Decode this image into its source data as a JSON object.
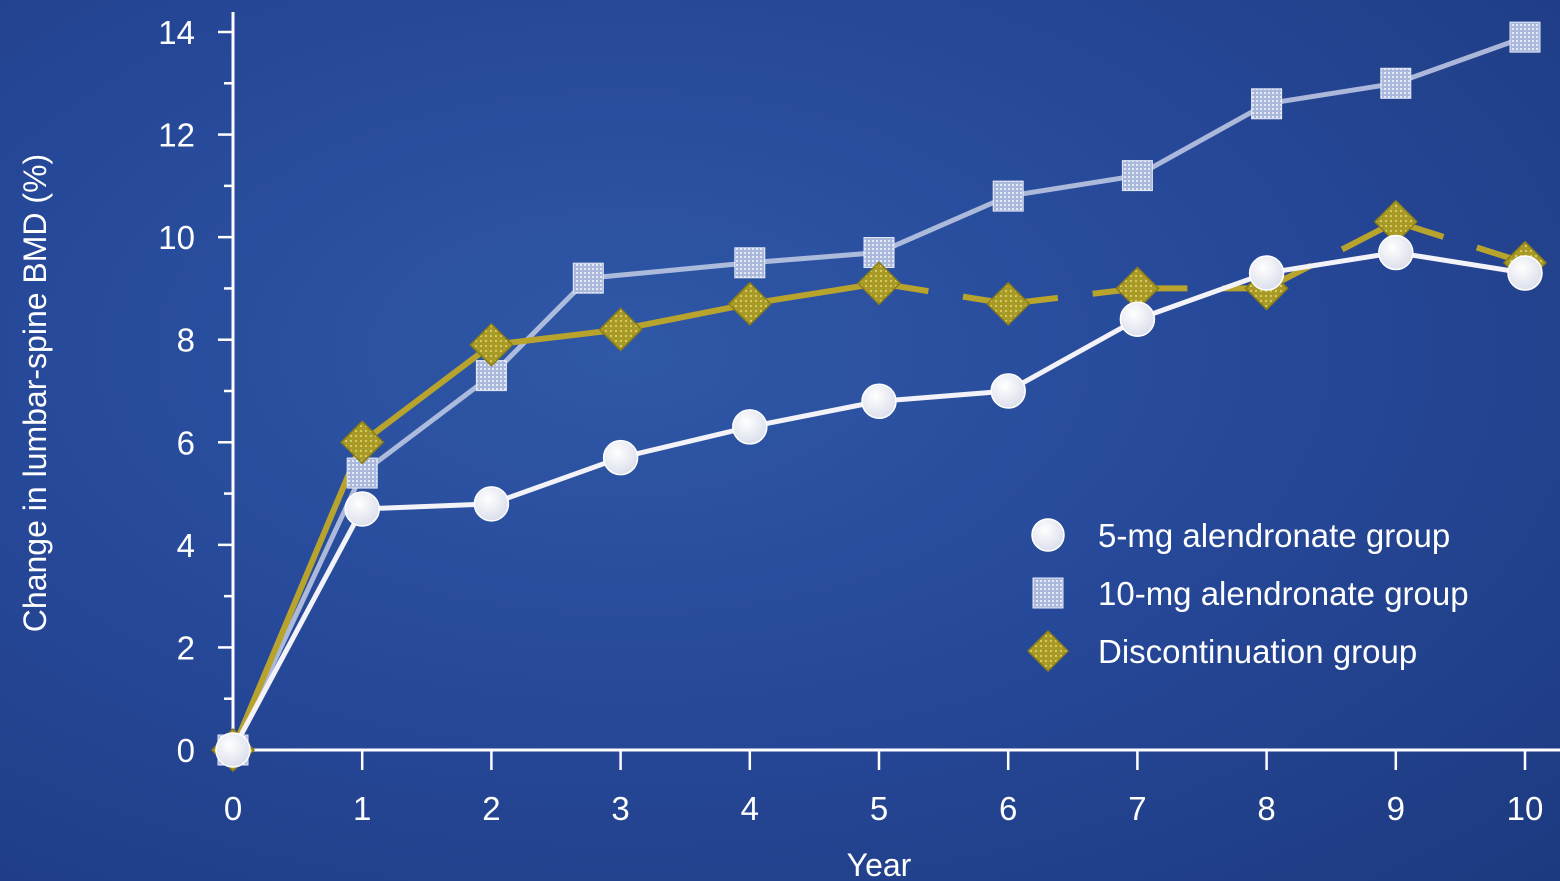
{
  "chart_data": {
    "type": "line",
    "title": "",
    "xlabel": "Year",
    "ylabel": "Change in lumbar-spine BMD (%)",
    "xlim": [
      0,
      10
    ],
    "ylim": [
      0,
      14
    ],
    "x_ticks": [
      "0",
      "1",
      "2",
      "3",
      "4",
      "5",
      "6",
      "7",
      "8",
      "9",
      "10"
    ],
    "y_ticks": [
      "0",
      "2",
      "4",
      "6",
      "8",
      "10",
      "12",
      "14"
    ],
    "grid": false,
    "legend_position": "bottom-right",
    "series": [
      {
        "name": "5-mg alendronate group",
        "marker": "circle",
        "color": "#f2f2f8",
        "points": [
          [
            0,
            0
          ],
          [
            1,
            4.7
          ],
          [
            2,
            4.8
          ],
          [
            3,
            5.7
          ],
          [
            4,
            6.3
          ],
          [
            5,
            6.8
          ],
          [
            6,
            7.0
          ],
          [
            7,
            8.4
          ],
          [
            8,
            9.3
          ],
          [
            9,
            9.7
          ],
          [
            10,
            9.3
          ]
        ]
      },
      {
        "name": "10-mg alendronate group",
        "marker": "square",
        "color": "#c3cde6",
        "points": [
          [
            0,
            0
          ],
          [
            1,
            5.4
          ],
          [
            2,
            7.3
          ],
          [
            2.75,
            9.2
          ],
          [
            4,
            9.5
          ],
          [
            5,
            9.7
          ],
          [
            6,
            10.8
          ],
          [
            7,
            11.2
          ],
          [
            8,
            12.6
          ],
          [
            9,
            13.0
          ],
          [
            10,
            13.9
          ]
        ]
      },
      {
        "name": "Discontinuation group",
        "marker": "diamond",
        "color": "#b8a32c",
        "points": [
          [
            0,
            0
          ],
          [
            1,
            6.0
          ],
          [
            2,
            7.9
          ],
          [
            3,
            8.2
          ],
          [
            4,
            8.7
          ],
          [
            5,
            9.1
          ],
          [
            6,
            8.7
          ],
          [
            7,
            9.0
          ],
          [
            8,
            9.0
          ],
          [
            9,
            10.3
          ],
          [
            10,
            9.5
          ]
        ],
        "dashed_after_x": 5
      }
    ]
  }
}
